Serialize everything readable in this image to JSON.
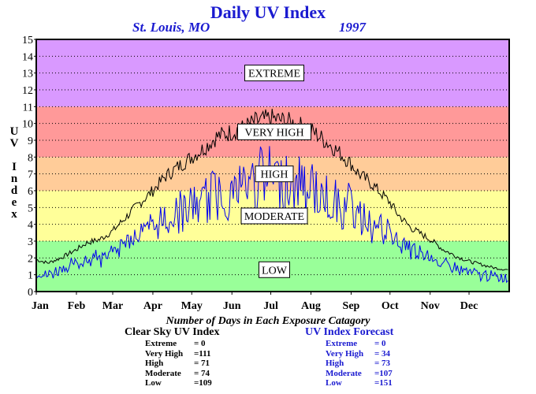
{
  "header": {
    "title": "Daily UV Index",
    "location": "St. Louis, MO",
    "year": "1997"
  },
  "chart_data": {
    "type": "line",
    "title": "Daily UV Index",
    "ylabel": "UV Index",
    "xlabel": "",
    "ylim": [
      0,
      15
    ],
    "yticks": [
      "0",
      "1",
      "2",
      "3",
      "4",
      "5",
      "6",
      "7",
      "8",
      "9",
      "10",
      "11",
      "12",
      "13",
      "14",
      "15"
    ],
    "months": [
      "Jan",
      "Feb",
      "Mar",
      "Apr",
      "May",
      "Jun",
      "Jul",
      "Aug",
      "Sep",
      "Oct",
      "Nov",
      "Dec"
    ],
    "grid": true,
    "bands": [
      {
        "label": "LOW",
        "from": 0,
        "to": 3,
        "color": "#99ff99",
        "label_y": 1.3
      },
      {
        "label": "MODERATE",
        "from": 3,
        "to": 6,
        "color": "#ffff99",
        "label_y": 4.5
      },
      {
        "label": "HIGH",
        "from": 6,
        "to": 8,
        "color": "#ffcc99",
        "label_y": 7
      },
      {
        "label": "VERY HIGH",
        "from": 8,
        "to": 11,
        "color": "#ff9999",
        "label_y": 9.5
      },
      {
        "label": "EXTREME",
        "from": 11,
        "to": 15,
        "color": "#d999ff",
        "label_y": 13
      }
    ],
    "series": [
      {
        "name": "Clear Sky UV Index",
        "color": "#000000",
        "x_days": [
          1,
          10,
          20,
          32,
          40,
          50,
          60,
          70,
          80,
          91,
          100,
          110,
          121,
          130,
          140,
          152,
          160,
          170,
          182,
          190,
          200,
          213,
          220,
          230,
          244,
          250,
          260,
          274,
          280,
          290,
          305,
          315,
          325,
          335,
          345,
          355,
          365
        ],
        "values": [
          1.9,
          1.7,
          2.0,
          2.5,
          2.9,
          3.1,
          3.6,
          4.4,
          5.2,
          6.0,
          6.8,
          7.4,
          8.0,
          8.5,
          9.2,
          9.5,
          9.7,
          10.1,
          10.3,
          10.2,
          10.0,
          9.6,
          9.2,
          8.6,
          7.6,
          7.0,
          6.4,
          5.3,
          4.6,
          3.8,
          3.1,
          2.5,
          2.1,
          1.8,
          1.6,
          1.4,
          1.3
        ]
      },
      {
        "name": "UV Index Forecast",
        "color": "#0000ee",
        "x_days": [
          1,
          10,
          20,
          32,
          40,
          50,
          60,
          70,
          80,
          91,
          100,
          110,
          121,
          130,
          140,
          152,
          160,
          170,
          182,
          190,
          200,
          213,
          220,
          230,
          244,
          250,
          260,
          274,
          280,
          290,
          305,
          315,
          325,
          335,
          345,
          355,
          365
        ],
        "values": [
          1.2,
          1.1,
          1.5,
          1.9,
          2.2,
          2.4,
          2.8,
          3.4,
          4.1,
          4.8,
          5.2,
          5.9,
          6.3,
          6.8,
          7.4,
          7.5,
          7.8,
          8.4,
          8.7,
          8.5,
          8.2,
          7.9,
          7.4,
          6.8,
          6.2,
          5.8,
          5.0,
          4.1,
          3.6,
          2.9,
          2.3,
          1.9,
          1.5,
          1.3,
          1.1,
          1.0,
          0.9
        ]
      }
    ]
  },
  "summary": {
    "title": "Number of Days in Each Exposure Catagory",
    "clear_sky": {
      "title": "Clear Sky UV Index",
      "rows": [
        {
          "label": "Extreme",
          "value": "=     0"
        },
        {
          "label": "Very High",
          "value": "=111"
        },
        {
          "label": "High",
          "value": "=   71"
        },
        {
          "label": "Moderate",
          "value": "=   74"
        },
        {
          "label": "Low",
          "value": "=109"
        }
      ]
    },
    "forecast": {
      "title": "UV Index Forecast",
      "rows": [
        {
          "label": "Extreme",
          "value": "=     0"
        },
        {
          "label": "Very High",
          "value": "=   34"
        },
        {
          "label": "High",
          "value": "=   73"
        },
        {
          "label": "Moderate",
          "value": "=107"
        },
        {
          "label": "Low",
          "value": "=151"
        }
      ]
    }
  }
}
